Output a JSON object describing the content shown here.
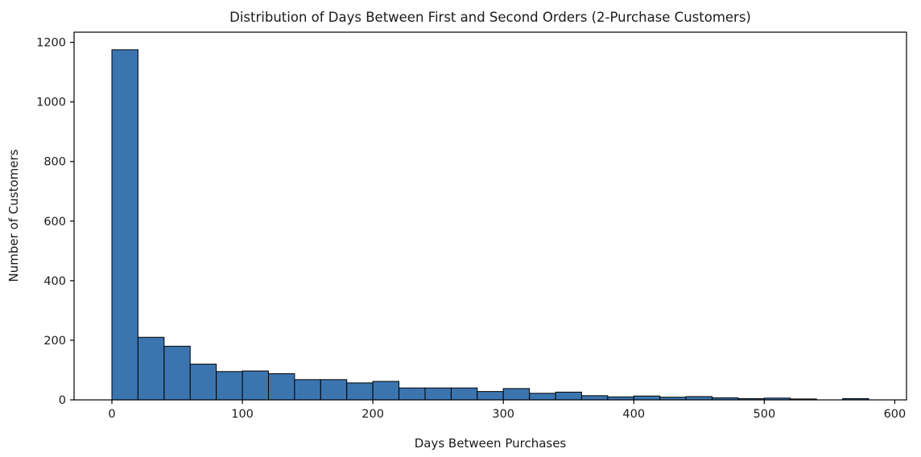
{
  "chart_data": {
    "type": "bar",
    "subtype": "histogram",
    "title": "Distribution of Days Between First and Second Orders (2-Purchase Customers)",
    "xlabel": "Days Between Purchases",
    "ylabel": "Number of Customers",
    "bin_start": 0,
    "bin_width": 20,
    "values": [
      1175,
      210,
      180,
      120,
      95,
      97,
      88,
      68,
      68,
      57,
      62,
      40,
      40,
      40,
      28,
      38,
      22,
      26,
      14,
      10,
      13,
      9,
      11,
      7,
      4,
      6,
      3,
      0,
      4
    ],
    "xticks": [
      0,
      100,
      200,
      300,
      400,
      500,
      600
    ],
    "yticks": [
      0,
      200,
      400,
      600,
      800,
      1000,
      1200
    ],
    "xlim": [
      -29,
      609
    ],
    "ylim": [
      0,
      1234
    ],
    "grid": false,
    "legend": "none",
    "bar_color": "#3b75af",
    "edge_color": "#000000",
    "axis_color": "#000000"
  }
}
